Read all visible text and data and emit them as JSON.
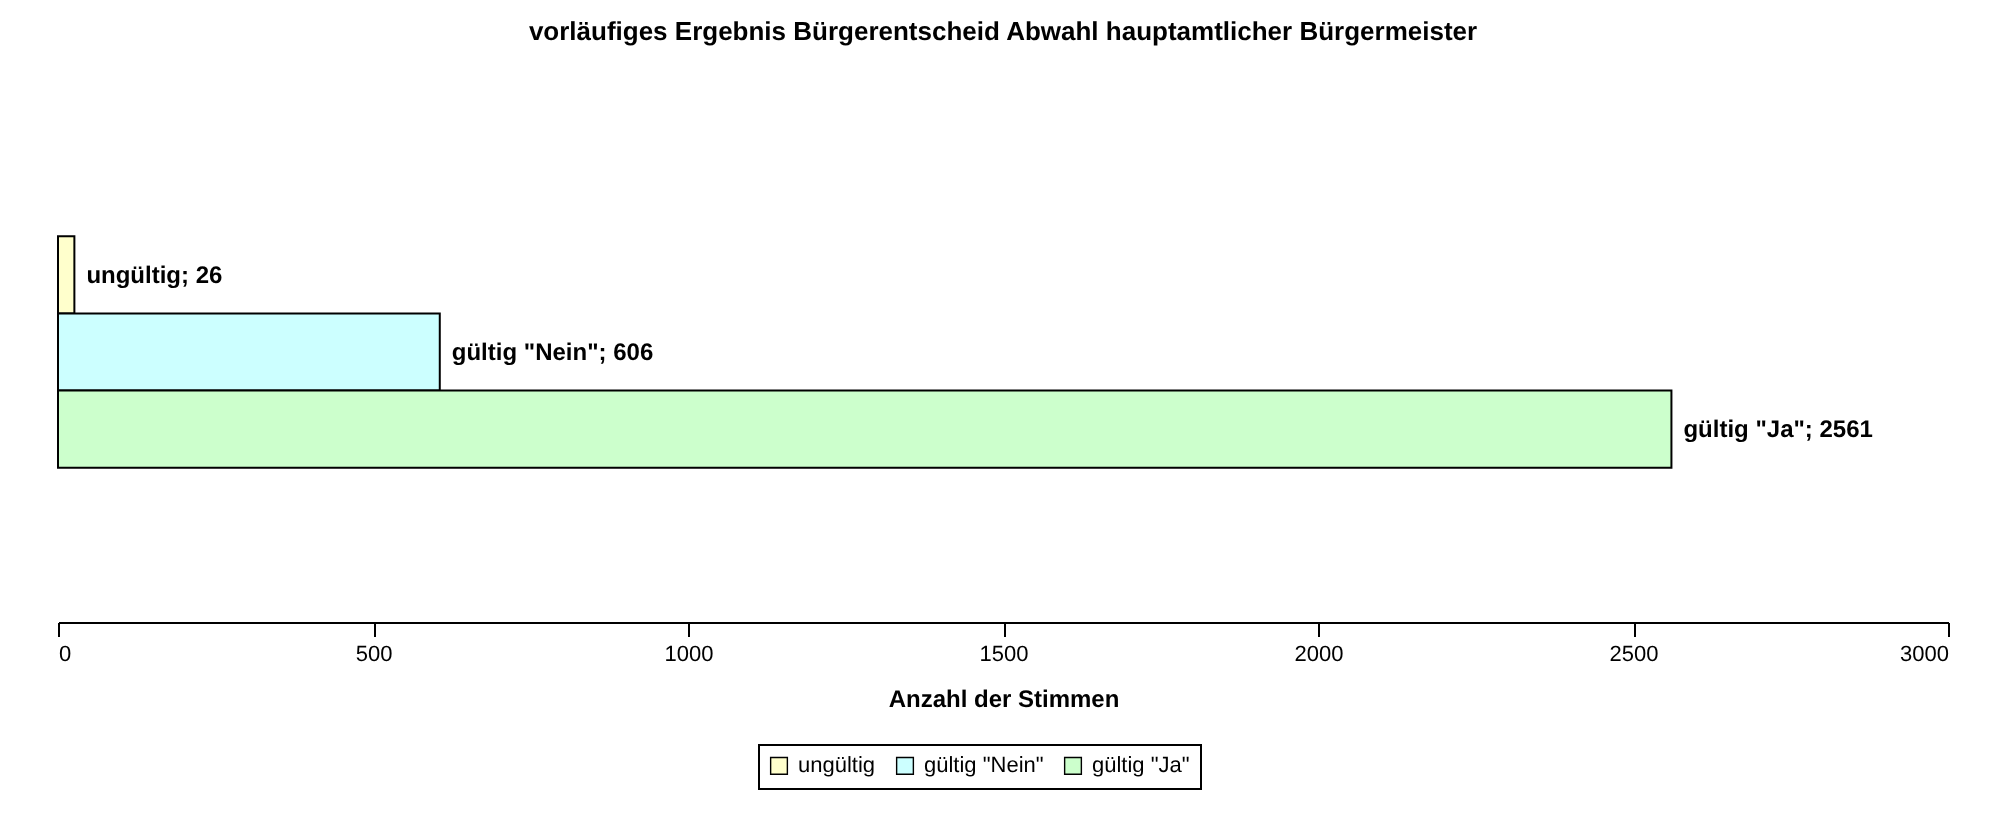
{
  "chart_data": {
    "type": "bar",
    "orientation": "horizontal",
    "title": "vorläufiges Ergebnis Bürgerentscheid Abwahl hauptamtlicher Bürgermeister",
    "xlabel": "Anzahl der Stimmen",
    "categories": [
      null
    ],
    "series": [
      {
        "name": "ungültig",
        "color": "#ffffcc",
        "values": [
          26
        ],
        "value_labels": [
          "ungültig; 26"
        ]
      },
      {
        "name": "gültig \"Nein\"",
        "color": "#ccffff",
        "values": [
          606
        ],
        "value_labels": [
          "gültig \"Nein\"; 606"
        ]
      },
      {
        "name": "gültig \"Ja\"",
        "color": "#ccffcc",
        "values": [
          2561
        ],
        "value_labels": [
          "gültig \"Ja\"; 2561"
        ]
      }
    ],
    "xlim": [
      0,
      3000
    ],
    "xticks": [
      0,
      500,
      1000,
      1500,
      2000,
      2500,
      3000
    ],
    "grid": false,
    "legend": "bottom",
    "tick_labels": "x"
  }
}
